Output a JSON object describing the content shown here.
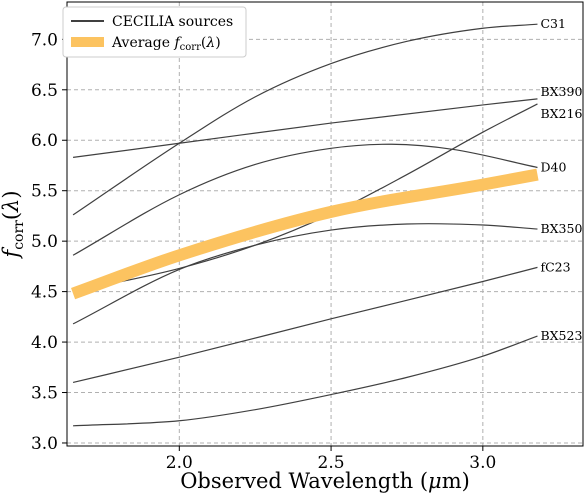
{
  "chart_data": {
    "type": "line",
    "xlabel": "Observed Wavelength (μm)",
    "ylabel": "f_corr(λ)",
    "xlim": [
      1.63,
      3.33
    ],
    "ylim": [
      2.97,
      7.37
    ],
    "xticks": [
      2.0,
      2.5,
      3.0
    ],
    "xtick_labels": [
      "2.0",
      "2.5",
      "3.0"
    ],
    "yticks": [
      3.0,
      3.5,
      4.0,
      4.5,
      5.0,
      5.5,
      6.0,
      6.5,
      7.0
    ],
    "ytick_labels": [
      "3.0",
      "3.5",
      "4.0",
      "4.5",
      "5.0",
      "5.5",
      "6.0",
      "6.5",
      "7.0"
    ],
    "grid": true,
    "legend_position": "top-left",
    "legend": [
      {
        "label": "CECILIA sources",
        "style": "thin-line",
        "color": "#000000"
      },
      {
        "label": "Average f_corr(λ)",
        "style": "thick-line",
        "color": "#fcc360"
      }
    ],
    "series": [
      {
        "name": "C31",
        "color": "#404040",
        "x": [
          1.65,
          2.0,
          2.25,
          2.5,
          2.75,
          3.0,
          3.18
        ],
        "y": [
          5.26,
          5.97,
          6.43,
          6.76,
          6.98,
          7.11,
          7.15
        ]
      },
      {
        "name": "BX390",
        "color": "#404040",
        "x": [
          1.65,
          2.0,
          2.5,
          3.0,
          3.18
        ],
        "y": [
          5.83,
          5.97,
          6.17,
          6.35,
          6.41
        ]
      },
      {
        "name": "BX216",
        "color": "#404040",
        "x": [
          1.65,
          2.0,
          2.25,
          2.5,
          2.75,
          3.0,
          3.18
        ],
        "y": [
          4.5,
          4.73,
          4.96,
          5.27,
          5.66,
          6.08,
          6.36
        ]
      },
      {
        "name": "D40",
        "color": "#404040",
        "x": [
          1.65,
          2.0,
          2.25,
          2.5,
          2.7,
          2.9,
          3.18
        ],
        "y": [
          4.86,
          5.46,
          5.76,
          5.92,
          5.96,
          5.91,
          5.73
        ]
      },
      {
        "name": "BX350",
        "color": "#404040",
        "x": [
          1.65,
          2.0,
          2.25,
          2.5,
          2.75,
          3.0,
          3.18
        ],
        "y": [
          4.18,
          4.72,
          4.96,
          5.11,
          5.17,
          5.16,
          5.12
        ]
      },
      {
        "name": "fC23",
        "color": "#404040",
        "x": [
          1.65,
          2.0,
          2.5,
          3.0,
          3.18
        ],
        "y": [
          3.6,
          3.85,
          4.23,
          4.6,
          4.74
        ]
      },
      {
        "name": "BX523",
        "color": "#404040",
        "x": [
          1.65,
          2.0,
          2.25,
          2.5,
          2.75,
          3.0,
          3.18
        ],
        "y": [
          3.17,
          3.22,
          3.33,
          3.48,
          3.65,
          3.86,
          4.06
        ]
      },
      {
        "name": "Average f_corr(λ)",
        "color": "#fcc360",
        "x": [
          1.65,
          2.0,
          2.5,
          3.0,
          3.18
        ],
        "y": [
          4.48,
          4.86,
          5.29,
          5.56,
          5.66
        ]
      }
    ]
  }
}
